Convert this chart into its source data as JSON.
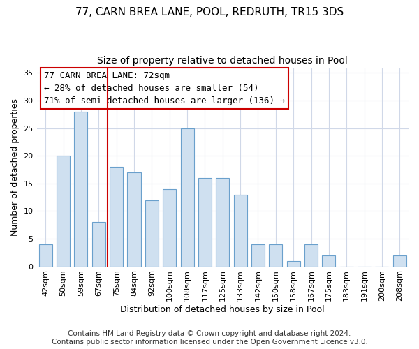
{
  "title": "77, CARN BREA LANE, POOL, REDRUTH, TR15 3DS",
  "subtitle": "Size of property relative to detached houses in Pool",
  "xlabel": "Distribution of detached houses by size in Pool",
  "ylabel": "Number of detached properties",
  "bar_labels": [
    "42sqm",
    "50sqm",
    "59sqm",
    "67sqm",
    "75sqm",
    "84sqm",
    "92sqm",
    "100sqm",
    "108sqm",
    "117sqm",
    "125sqm",
    "133sqm",
    "142sqm",
    "150sqm",
    "158sqm",
    "167sqm",
    "175sqm",
    "183sqm",
    "191sqm",
    "200sqm",
    "208sqm"
  ],
  "bar_values": [
    4,
    20,
    28,
    8,
    18,
    17,
    12,
    14,
    25,
    16,
    16,
    13,
    4,
    4,
    1,
    4,
    2,
    0,
    0,
    0,
    2
  ],
  "bar_color": "#cfe0f0",
  "bar_edge_color": "#6aa0cc",
  "bar_width": 0.75,
  "vline_x": 3.5,
  "vline_color": "#cc0000",
  "annotation_line1": "77 CARN BREA LANE: 72sqm",
  "annotation_line2": "← 28% of detached houses are smaller (54)",
  "annotation_line3": "71% of semi-detached houses are larger (136) →",
  "ylim": [
    0,
    36
  ],
  "yticks": [
    0,
    5,
    10,
    15,
    20,
    25,
    30,
    35
  ],
  "background_color": "#ffffff",
  "plot_background": "#ffffff",
  "grid_color": "#d0d8e8",
  "footer_line1": "Contains HM Land Registry data © Crown copyright and database right 2024.",
  "footer_line2": "Contains public sector information licensed under the Open Government Licence v3.0.",
  "title_fontsize": 11,
  "subtitle_fontsize": 10,
  "axis_label_fontsize": 9,
  "tick_fontsize": 8,
  "annotation_fontsize": 9,
  "footer_fontsize": 7.5
}
